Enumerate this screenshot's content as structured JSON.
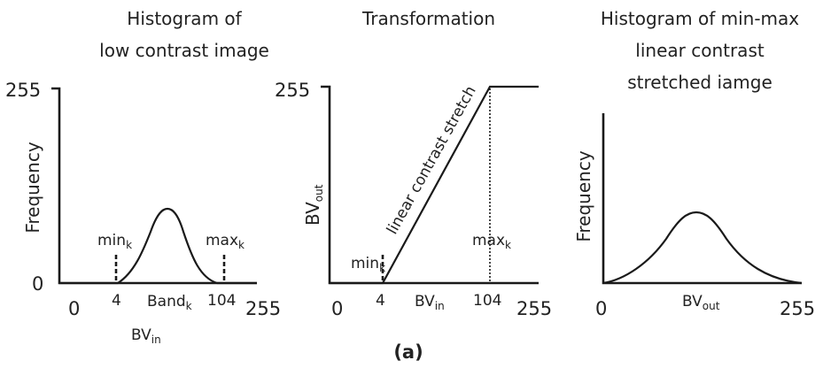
{
  "panels": [
    {
      "title_lines": [
        "Histogram of",
        "low contrast image"
      ],
      "y_label": "Frequency",
      "y_top_tick": "255",
      "y_bottom_tick": "0",
      "x_ticks": [
        "0",
        "4",
        "104",
        "255"
      ],
      "x_center_label": {
        "base": "Band",
        "sub": "k"
      },
      "x_axis_label": {
        "base": "BV",
        "sub": "in"
      },
      "min_label": {
        "base": "min",
        "sub": "k"
      },
      "max_label": {
        "base": "max",
        "sub": "k"
      }
    },
    {
      "title_lines": [
        "Transformation"
      ],
      "y_label": {
        "base": "BV",
        "sub": "out"
      },
      "y_top_tick": "255",
      "x_ticks": [
        "0",
        "4",
        "104",
        "255"
      ],
      "x_axis_label": {
        "base": "BV",
        "sub": "in"
      },
      "diagonal_label": "linear contrast stretch",
      "min_label": {
        "base": "min",
        "sub": "k"
      },
      "max_label": {
        "base": "max",
        "sub": "k"
      }
    },
    {
      "title_lines": [
        "Histogram of min-max",
        "linear contrast",
        "stretched iamge"
      ],
      "y_label": "Frequency",
      "x_ticks": [
        "0",
        "255"
      ],
      "x_axis_label": {
        "base": "BV",
        "sub": "out"
      }
    }
  ],
  "caption": "(a)"
}
